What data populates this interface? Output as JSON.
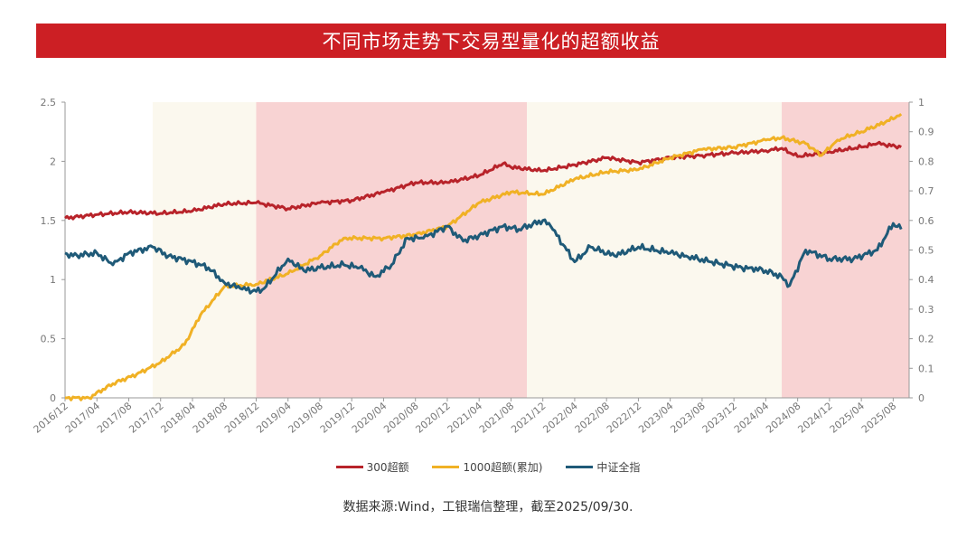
{
  "header": {
    "title": "不同市场走势下交易型量化的超额收益"
  },
  "source": {
    "text": "数据来源:Wind，工银瑞信整理，截至2025/09/30."
  },
  "chart_data": {
    "type": "line",
    "x_start": "2016-12",
    "x_end": "2025-10",
    "x_ticks": [
      "2016/12",
      "2017/04",
      "2017/08",
      "2017/12",
      "2018/04",
      "2018/08",
      "2018/12",
      "2019/04",
      "2019/08",
      "2019/12",
      "2020/04",
      "2020/08",
      "2020/12",
      "2021/04",
      "2021/08",
      "2021/12",
      "2022/04",
      "2022/08",
      "2022/12",
      "2023/04",
      "2023/08",
      "2023/12",
      "2024/04",
      "2024/08",
      "2024/12",
      "2025/04",
      "2025/08"
    ],
    "y_left": {
      "ylim": [
        0,
        2.5
      ],
      "ticks": [
        "0",
        "0.5",
        "1",
        "1.5",
        "2",
        "2.5"
      ]
    },
    "y_right": {
      "ylim": [
        0,
        1
      ],
      "ticks": [
        "0",
        "0.1",
        "0.2",
        "0.3",
        "0.4",
        "0.5",
        "0.6",
        "0.7",
        "0.8",
        "0.9",
        "1"
      ]
    },
    "shaded_regions": [
      {
        "start": "2017-11",
        "end": "2018-12",
        "color": "#fbf8ee"
      },
      {
        "start": "2018-12",
        "end": "2021-10",
        "color": "#f8d3d3"
      },
      {
        "start": "2021-10",
        "end": "2024-06",
        "color": "#fbf8ee"
      },
      {
        "start": "2024-06",
        "end": "2025-10",
        "color": "#f8d3d3"
      }
    ],
    "series": [
      {
        "name": "300超额",
        "axis": "left",
        "color": "#b8232a",
        "x": [
          "2016-12",
          "2017-04",
          "2017-08",
          "2017-12",
          "2018-04",
          "2018-08",
          "2018-12",
          "2019-04",
          "2019-08",
          "2019-12",
          "2020-04",
          "2020-08",
          "2020-12",
          "2021-04",
          "2021-07",
          "2021-08",
          "2021-12",
          "2022-04",
          "2022-08",
          "2022-12",
          "2023-04",
          "2023-08",
          "2023-12",
          "2024-04",
          "2024-06",
          "2024-08",
          "2024-12",
          "2025-04",
          "2025-06",
          "2025-09"
        ],
        "values": [
          1.52,
          1.55,
          1.57,
          1.56,
          1.58,
          1.64,
          1.65,
          1.6,
          1.65,
          1.67,
          1.74,
          1.82,
          1.82,
          1.88,
          1.98,
          1.95,
          1.92,
          1.97,
          2.03,
          1.99,
          2.03,
          2.05,
          2.07,
          2.09,
          2.11,
          2.04,
          2.08,
          2.12,
          2.15,
          2.12
        ]
      },
      {
        "name": "1000超额(累加)",
        "axis": "left",
        "color": "#f0b125",
        "x": [
          "2016-12",
          "2017-03",
          "2017-06",
          "2017-09",
          "2017-12",
          "2018-03",
          "2018-05",
          "2018-08",
          "2018-12",
          "2019-04",
          "2019-08",
          "2019-11",
          "2020-04",
          "2020-08",
          "2020-12",
          "2021-04",
          "2021-08",
          "2021-12",
          "2022-04",
          "2022-08",
          "2022-12",
          "2023-04",
          "2023-08",
          "2023-12",
          "2024-04",
          "2024-06",
          "2024-09",
          "2024-11",
          "2025-01",
          "2025-04",
          "2025-07",
          "2025-09"
        ],
        "values": [
          0.0,
          0.0,
          0.12,
          0.2,
          0.3,
          0.45,
          0.7,
          0.94,
          0.96,
          1.05,
          1.2,
          1.35,
          1.35,
          1.38,
          1.45,
          1.65,
          1.74,
          1.72,
          1.85,
          1.91,
          1.93,
          2.03,
          2.1,
          2.12,
          2.18,
          2.2,
          2.15,
          2.05,
          2.18,
          2.25,
          2.33,
          2.4
        ]
      },
      {
        "name": "中证全指",
        "axis": "right",
        "color": "#1f5a78",
        "x": [
          "2016-12",
          "2017-01",
          "2017-04",
          "2017-06",
          "2017-08",
          "2017-11",
          "2018-01",
          "2018-04",
          "2018-06",
          "2018-08",
          "2018-10",
          "2018-12",
          "2019-01",
          "2019-04",
          "2019-06",
          "2019-08",
          "2019-11",
          "2020-01",
          "2020-03",
          "2020-05",
          "2020-07",
          "2020-09",
          "2020-12",
          "2021-02",
          "2021-04",
          "2021-07",
          "2021-09",
          "2021-12",
          "2022-01",
          "2022-04",
          "2022-06",
          "2022-09",
          "2022-12",
          "2023-04",
          "2023-06",
          "2023-09",
          "2024-01",
          "2024-02",
          "2024-04",
          "2024-06",
          "2024-07",
          "2024-09",
          "2024-12",
          "2025-03",
          "2025-06",
          "2025-08",
          "2025-09"
        ],
        "values": [
          0.49,
          0.48,
          0.49,
          0.45,
          0.49,
          0.51,
          0.48,
          0.46,
          0.44,
          0.39,
          0.37,
          0.36,
          0.37,
          0.47,
          0.43,
          0.44,
          0.45,
          0.44,
          0.41,
          0.45,
          0.54,
          0.54,
          0.58,
          0.53,
          0.55,
          0.58,
          0.57,
          0.6,
          0.58,
          0.46,
          0.51,
          0.48,
          0.51,
          0.49,
          0.48,
          0.46,
          0.44,
          0.44,
          0.43,
          0.41,
          0.38,
          0.5,
          0.47,
          0.47,
          0.5,
          0.59,
          0.57
        ]
      }
    ]
  }
}
